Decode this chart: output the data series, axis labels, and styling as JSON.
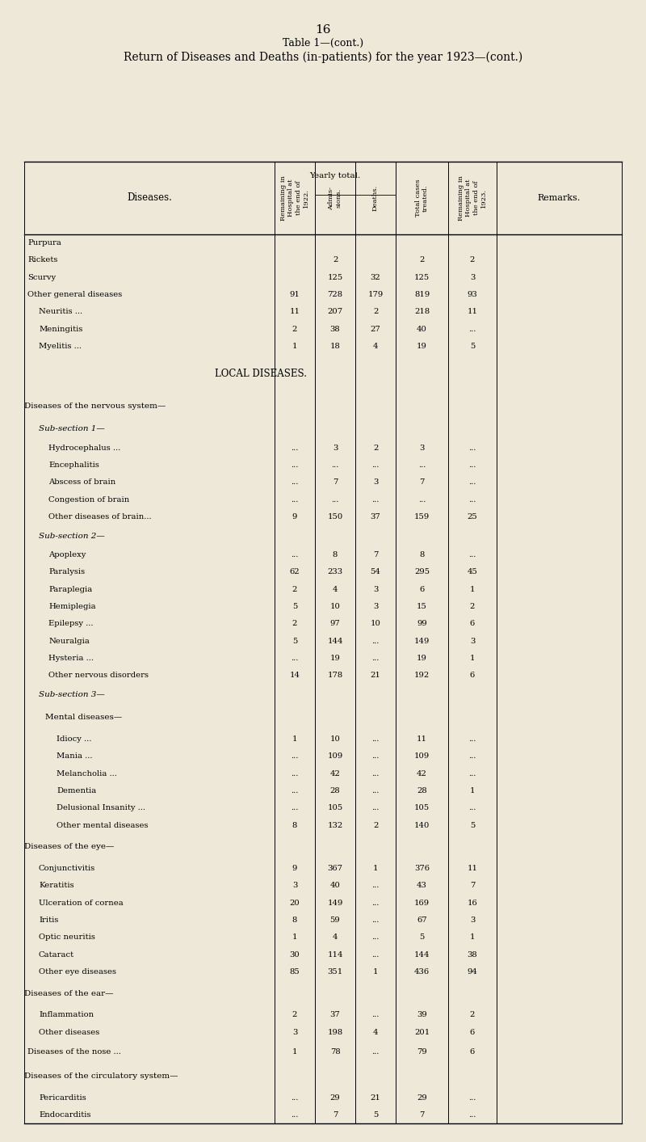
{
  "page_number": "16",
  "table_title": "Table 1—(cont.)",
  "subtitle": "Return of Diseases and Deaths (in-patients) for the year 1923—(cont.)",
  "bg_color": "#ede8d8",
  "col_header_diseases": "Diseases.",
  "col_header_rem1922": "Remaining in\nHospital at\nthe end of\n1922.",
  "col_header_admis": "Admis-\nsions.",
  "col_header_deaths": "Deaths.",
  "col_header_total": "Total cases\ntreated.",
  "col_header_rem1923": "Remaining in\nHospital at\nthe end of\n1923.",
  "col_header_remarks": "Remarks.",
  "yearly_total_label": "Yearly total.",
  "rows": [
    {
      "disease": "Purpura",
      "indent": 0,
      "type": "data",
      "dots": "       ...          ...           ...",
      "rem1922": "",
      "admis": "",
      "deaths": "",
      "total": "",
      "rem1923": ""
    },
    {
      "disease": "Rickets",
      "indent": 0,
      "type": "data",
      "dots": "       ...          ...           ...",
      "rem1922": "",
      "admis": "2",
      "deaths": "",
      "total": "2",
      "rem1923": "2"
    },
    {
      "disease": "Scurvy",
      "indent": 0,
      "type": "data",
      "dots": "       ...          ...           ...",
      "rem1922": "",
      "admis": "125",
      "deaths": "32",
      "total": "125",
      "rem1923": "3"
    },
    {
      "disease": "Other general diseases",
      "indent": 0,
      "type": "data",
      "dots": "   ...          ...           ...",
      "rem1922": "91",
      "admis": "728",
      "deaths": "179",
      "total": "819",
      "rem1923": "93"
    },
    {
      "disease": "Neuritis ...",
      "indent": 1,
      "type": "data",
      "dots": "      ...           ...",
      "rem1922": "11",
      "admis": "207",
      "deaths": "2",
      "total": "218",
      "rem1923": "11"
    },
    {
      "disease": "Meningitis",
      "indent": 1,
      "type": "data",
      "dots": "      ...           ...",
      "rem1922": "2",
      "admis": "38",
      "deaths": "27",
      "total": "40",
      "rem1923": "..."
    },
    {
      "disease": "Myelitis ...",
      "indent": 1,
      "type": "data",
      "dots": "      ...           ...",
      "rem1922": "1",
      "admis": "18",
      "deaths": "4",
      "total": "19",
      "rem1923": "5"
    },
    {
      "disease": "LOCAL DISEASES.",
      "indent": 0,
      "type": "section_center",
      "rem1922": "",
      "admis": "",
      "deaths": "",
      "total": "",
      "rem1923": ""
    },
    {
      "disease": "Diseases of the nervous system—",
      "indent": 0,
      "type": "category",
      "rem1922": "",
      "admis": "",
      "deaths": "",
      "total": "",
      "rem1923": ""
    },
    {
      "disease": "Sub-section 1—",
      "indent": 1,
      "type": "italic",
      "rem1922": "",
      "admis": "",
      "deaths": "",
      "total": "",
      "rem1923": ""
    },
    {
      "disease": "Hydrocephalus ...",
      "indent": 2,
      "type": "data",
      "rem1922": "...",
      "admis": "3",
      "deaths": "2",
      "total": "3",
      "rem1923": "..."
    },
    {
      "disease": "Encephalitis",
      "indent": 2,
      "type": "data",
      "rem1922": "...",
      "admis": "...",
      "deaths": "...",
      "total": "...",
      "rem1923": "..."
    },
    {
      "disease": "Abscess of brain",
      "indent": 2,
      "type": "data",
      "rem1922": "...",
      "admis": "7",
      "deaths": "3",
      "total": "7",
      "rem1923": "..."
    },
    {
      "disease": "Congestion of brain",
      "indent": 2,
      "type": "data",
      "rem1922": "...",
      "admis": "...",
      "deaths": "...",
      "total": "...",
      "rem1923": "..."
    },
    {
      "disease": "Other diseases of brain...",
      "indent": 2,
      "type": "data",
      "rem1922": "9",
      "admis": "150",
      "deaths": "37",
      "total": "159",
      "rem1923": "25"
    },
    {
      "disease": "Sub-section 2—",
      "indent": 1,
      "type": "italic",
      "rem1922": "",
      "admis": "",
      "deaths": "",
      "total": "",
      "rem1923": ""
    },
    {
      "disease": "Apoplexy",
      "indent": 2,
      "type": "data",
      "rem1922": "...",
      "admis": "8",
      "deaths": "7",
      "total": "8",
      "rem1923": "..."
    },
    {
      "disease": "Paralysis",
      "indent": 2,
      "type": "data",
      "rem1922": "62",
      "admis": "233",
      "deaths": "54",
      "total": "295",
      "rem1923": "45"
    },
    {
      "disease": "Paraplegia",
      "indent": 2,
      "type": "data",
      "rem1922": "2",
      "admis": "4",
      "deaths": "3",
      "total": "6",
      "rem1923": "1"
    },
    {
      "disease": "Hemiplegia",
      "indent": 2,
      "type": "data",
      "rem1922": "5",
      "admis": "10",
      "deaths": "3",
      "total": "15",
      "rem1923": "2"
    },
    {
      "disease": "Epilepsy ...",
      "indent": 2,
      "type": "data",
      "rem1922": "2",
      "admis": "97",
      "deaths": "10",
      "total": "99",
      "rem1923": "6"
    },
    {
      "disease": "Neuralgia",
      "indent": 2,
      "type": "data",
      "rem1922": "5",
      "admis": "144",
      "deaths": "...",
      "total": "149",
      "rem1923": "3"
    },
    {
      "disease": "Hysteria ...",
      "indent": 2,
      "type": "data",
      "rem1922": "...",
      "admis": "19",
      "deaths": "...",
      "total": "19",
      "rem1923": "1"
    },
    {
      "disease": "Other nervous disorders",
      "indent": 2,
      "type": "data",
      "rem1922": "14",
      "admis": "178",
      "deaths": "21",
      "total": "192",
      "rem1923": "6"
    },
    {
      "disease": "Sub-section 3—",
      "indent": 1,
      "type": "italic",
      "rem1922": "",
      "admis": "",
      "deaths": "",
      "total": "",
      "rem1923": ""
    },
    {
      "disease": "Mental diseases—",
      "indent": 2,
      "type": "category",
      "rem1922": "",
      "admis": "",
      "deaths": "",
      "total": "",
      "rem1923": ""
    },
    {
      "disease": "Idiocy ...",
      "indent": 3,
      "type": "data",
      "rem1922": "1",
      "admis": "10",
      "deaths": "...",
      "total": "11",
      "rem1923": "..."
    },
    {
      "disease": "Mania ...",
      "indent": 3,
      "type": "data",
      "rem1922": "...",
      "admis": "109",
      "deaths": "...",
      "total": "109",
      "rem1923": "..."
    },
    {
      "disease": "Melancholia ...",
      "indent": 3,
      "type": "data",
      "rem1922": "...",
      "admis": "42",
      "deaths": "...",
      "total": "42",
      "rem1923": "..."
    },
    {
      "disease": "Dementia",
      "indent": 3,
      "type": "data",
      "rem1922": "...",
      "admis": "28",
      "deaths": "...",
      "total": "28",
      "rem1923": "1"
    },
    {
      "disease": "Delusional Insanity ...",
      "indent": 3,
      "type": "data",
      "rem1922": "...",
      "admis": "105",
      "deaths": "...",
      "total": "105",
      "rem1923": "..."
    },
    {
      "disease": "Other mental diseases",
      "indent": 3,
      "type": "data",
      "rem1922": "8",
      "admis": "132",
      "deaths": "2",
      "total": "140",
      "rem1923": "5"
    },
    {
      "disease": "Diseases of the eye—",
      "indent": 0,
      "type": "category",
      "rem1922": "",
      "admis": "",
      "deaths": "",
      "total": "",
      "rem1923": ""
    },
    {
      "disease": "Conjunctivitis",
      "indent": 1,
      "type": "data",
      "rem1922": "9",
      "admis": "367",
      "deaths": "1",
      "total": "376",
      "rem1923": "11"
    },
    {
      "disease": "Keratitis",
      "indent": 1,
      "type": "data",
      "rem1922": "3",
      "admis": "40",
      "deaths": "...",
      "total": "43",
      "rem1923": "7"
    },
    {
      "disease": "Ulceration of cornea",
      "indent": 1,
      "type": "data",
      "rem1922": "20",
      "admis": "149",
      "deaths": "...",
      "total": "169",
      "rem1923": "16"
    },
    {
      "disease": "Iritis",
      "indent": 1,
      "type": "data",
      "rem1922": "8",
      "admis": "59",
      "deaths": "...",
      "total": "67",
      "rem1923": "3"
    },
    {
      "disease": "Optic neuritis",
      "indent": 1,
      "type": "data",
      "rem1922": "1",
      "admis": "4",
      "deaths": "...",
      "total": "5",
      "rem1923": "1"
    },
    {
      "disease": "Cataract",
      "indent": 1,
      "type": "data",
      "rem1922": "30",
      "admis": "114",
      "deaths": "...",
      "total": "144",
      "rem1923": "38"
    },
    {
      "disease": "Other eye diseases",
      "indent": 1,
      "type": "data",
      "rem1922": "85",
      "admis": "351",
      "deaths": "1",
      "total": "436",
      "rem1923": "94"
    },
    {
      "disease": "Diseases of the ear—",
      "indent": 0,
      "type": "category",
      "rem1922": "",
      "admis": "",
      "deaths": "",
      "total": "",
      "rem1923": ""
    },
    {
      "disease": "Inflammation",
      "indent": 1,
      "type": "data",
      "rem1922": "2",
      "admis": "37",
      "deaths": "...",
      "total": "39",
      "rem1923": "2"
    },
    {
      "disease": "Other diseases",
      "indent": 1,
      "type": "data",
      "rem1922": "3",
      "admis": "198",
      "deaths": "4",
      "total": "201",
      "rem1923": "6"
    },
    {
      "disease": "Diseases of the nose ...",
      "indent": 0,
      "type": "category_data",
      "rem1922": "1",
      "admis": "78",
      "deaths": "...",
      "total": "79",
      "rem1923": "6"
    },
    {
      "disease": "Diseases of the circulatory system—",
      "indent": 0,
      "type": "category",
      "rem1922": "",
      "admis": "",
      "deaths": "",
      "total": "",
      "rem1923": ""
    },
    {
      "disease": "Pericarditis",
      "indent": 1,
      "type": "data",
      "rem1922": "...",
      "admis": "29",
      "deaths": "21",
      "total": "29",
      "rem1923": "..."
    },
    {
      "disease": "Endocarditis",
      "indent": 1,
      "type": "data",
      "rem1922": "...",
      "admis": "7",
      "deaths": "5",
      "total": "7",
      "rem1923": "..."
    }
  ]
}
